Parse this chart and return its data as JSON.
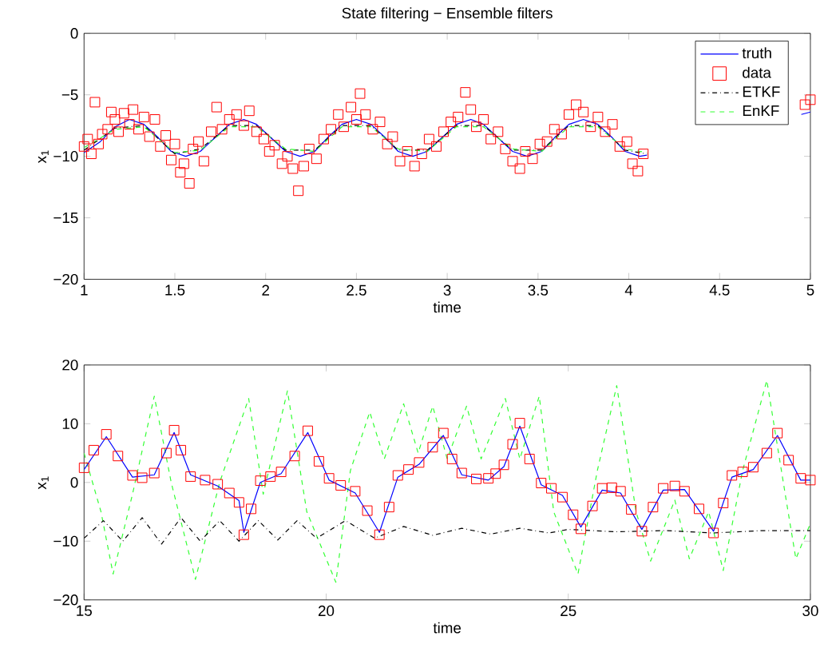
{
  "chart_data": [
    {
      "type": "line",
      "title": "State filtering − Ensemble filters",
      "xlabel": "time",
      "ylabel": "x$_{1}$",
      "xlim": [
        1,
        5
      ],
      "ylim": [
        -20,
        0
      ],
      "xticks": [
        1,
        1.5,
        2,
        2.5,
        3,
        3.5,
        4,
        4.5,
        5
      ],
      "yticks": [
        {
          "value": -20,
          "label": "−20"
        },
        {
          "value": -15,
          "label": "−15"
        },
        {
          "value": -10,
          "label": "−10"
        },
        {
          "value": -5,
          "label": "−5"
        },
        0
      ],
      "legend": "top right",
      "series": [
        {
          "name": "truth",
          "color": "#0000ff",
          "line_style": "solid",
          "x": [
            1.0,
            1.09,
            1.17,
            1.25,
            1.33,
            1.41,
            1.48,
            1.56,
            1.64,
            1.72,
            1.8,
            1.88,
            1.95,
            2.03,
            2.11,
            2.19,
            2.27,
            2.34,
            2.42,
            2.5,
            2.58,
            2.66,
            2.73,
            2.81,
            2.89,
            2.97,
            3.05,
            3.13,
            3.2,
            3.28,
            3.36,
            3.44,
            3.52,
            3.59,
            3.67,
            3.75,
            3.83,
            3.91,
            3.98,
            4.06,
            4.1,
            4.5,
            4.95,
            5.0
          ],
          "values": [
            -9.7,
            -8.8,
            -7.6,
            -7.0,
            -7.4,
            -8.5,
            -9.6,
            -10.0,
            -9.6,
            -8.5,
            -7.4,
            -7.0,
            -7.4,
            -8.5,
            -9.6,
            -10.0,
            -9.6,
            -8.5,
            -7.4,
            -7.0,
            -7.4,
            -8.5,
            -9.6,
            -10.0,
            -9.6,
            -8.5,
            -7.4,
            -7.0,
            -7.4,
            -8.5,
            -9.6,
            -10.0,
            -9.6,
            -8.5,
            -7.4,
            -7.0,
            -7.4,
            -8.5,
            -9.6,
            -10.0,
            -9.9,
            null,
            -6.6,
            -6.4
          ]
        },
        {
          "name": "data",
          "type": "scatter",
          "marker": "square",
          "color": "#ff0000",
          "x": [
            1.0,
            1.02,
            1.04,
            1.06,
            1.08,
            1.1,
            1.13,
            1.15,
            1.17,
            1.19,
            1.22,
            1.25,
            1.27,
            1.3,
            1.33,
            1.36,
            1.39,
            1.42,
            1.45,
            1.48,
            1.5,
            1.53,
            1.55,
            1.58,
            1.6,
            1.63,
            1.66,
            1.7,
            1.73,
            1.76,
            1.8,
            1.84,
            1.88,
            1.91,
            1.95,
            1.99,
            2.02,
            2.05,
            2.09,
            2.12,
            2.15,
            2.18,
            2.21,
            2.24,
            2.28,
            2.32,
            2.36,
            2.4,
            2.43,
            2.47,
            2.5,
            2.52,
            2.55,
            2.59,
            2.63,
            2.67,
            2.7,
            2.74,
            2.78,
            2.82,
            2.86,
            2.9,
            2.94,
            2.98,
            3.02,
            3.06,
            3.1,
            3.13,
            3.16,
            3.2,
            3.24,
            3.28,
            3.32,
            3.36,
            3.4,
            3.43,
            3.47,
            3.51,
            3.55,
            3.59,
            3.63,
            3.67,
            3.71,
            3.75,
            3.79,
            3.83,
            3.87,
            3.91,
            3.95,
            3.99,
            4.02,
            4.05,
            4.08,
            4.97,
            5.0
          ],
          "values": [
            -9.2,
            -8.6,
            -9.8,
            -5.6,
            -9.0,
            -8.2,
            -7.8,
            -6.4,
            -7.0,
            -8.0,
            -6.5,
            -7.4,
            -6.2,
            -7.8,
            -6.8,
            -8.4,
            -7.0,
            -9.2,
            -8.3,
            -10.3,
            -9.0,
            -11.3,
            -10.6,
            -12.2,
            -9.4,
            -8.8,
            -10.4,
            -8.0,
            -6.0,
            -7.8,
            -7.0,
            -6.6,
            -7.5,
            -6.3,
            -8.0,
            -8.6,
            -9.6,
            -9.1,
            -10.6,
            -10.0,
            -11.0,
            -12.8,
            -10.8,
            -9.4,
            -10.2,
            -8.6,
            -7.8,
            -6.6,
            -7.6,
            -6.0,
            -7.0,
            -4.9,
            -6.6,
            -7.8,
            -7.2,
            -9.0,
            -8.4,
            -10.4,
            -9.6,
            -10.8,
            -9.8,
            -8.6,
            -9.2,
            -8.0,
            -7.2,
            -6.8,
            -4.8,
            -6.2,
            -7.6,
            -7.0,
            -8.6,
            -8.0,
            -9.4,
            -10.4,
            -11.0,
            -9.6,
            -10.2,
            -9.0,
            -8.8,
            -7.8,
            -8.2,
            -6.6,
            -5.8,
            -6.4,
            -7.6,
            -6.8,
            -8.0,
            -7.4,
            -9.2,
            -8.8,
            -10.6,
            -11.2,
            -9.8,
            -5.8,
            -5.4
          ]
        },
        {
          "name": "ETKF",
          "color": "#000000",
          "line_style": "dashdot",
          "x": [
            1.0,
            1.17,
            1.33,
            1.5,
            1.64,
            1.8,
            1.95,
            2.11,
            2.27,
            2.42,
            2.58,
            2.73,
            2.89,
            3.05,
            3.2,
            3.36,
            3.52,
            3.67,
            3.83,
            3.98,
            4.1
          ],
          "values": [
            -9.5,
            -7.7,
            -7.5,
            -9.8,
            -9.4,
            -7.5,
            -7.5,
            -9.5,
            -9.5,
            -7.5,
            -7.5,
            -9.5,
            -9.5,
            -7.5,
            -7.5,
            -9.5,
            -9.5,
            -7.5,
            -7.5,
            -9.5,
            -9.8
          ]
        },
        {
          "name": "EnKF",
          "color": "#33ff33",
          "line_style": "dashed",
          "x": [
            1.0,
            1.17,
            1.33,
            1.5,
            1.64,
            1.8,
            1.95,
            2.11,
            2.27,
            2.42,
            2.58,
            2.73,
            2.89,
            3.05,
            3.2,
            3.36,
            3.52,
            3.67,
            3.83,
            3.98,
            4.1
          ],
          "values": [
            -9.3,
            -7.8,
            -7.6,
            -9.7,
            -9.5,
            -7.6,
            -7.6,
            -9.4,
            -9.6,
            -7.6,
            -7.6,
            -9.4,
            -9.6,
            -7.6,
            -7.6,
            -9.4,
            -9.6,
            -7.6,
            -7.6,
            -9.4,
            -9.7
          ]
        }
      ]
    },
    {
      "type": "line",
      "xlabel": "time",
      "ylabel": "x$_{1}$",
      "xlim": [
        15,
        30
      ],
      "ylim": [
        -20,
        20
      ],
      "xticks": [
        15,
        20,
        25,
        30
      ],
      "yticks": [
        {
          "value": -20,
          "label": "−20"
        },
        {
          "value": -10,
          "label": "−10"
        },
        0,
        10,
        20
      ],
      "series": [
        {
          "color": "#33ff33",
          "line_style": "dashed",
          "x": [
            15.0,
            15.35,
            15.6,
            16.0,
            16.45,
            16.8,
            17.3,
            17.8,
            18.4,
            18.7,
            19.2,
            19.6,
            20.2,
            20.5,
            20.9,
            21.2,
            21.6,
            21.9,
            22.2,
            22.5,
            22.9,
            23.2,
            23.7,
            24.0,
            24.4,
            24.7,
            25.2,
            25.6,
            26.0,
            26.4,
            26.7,
            27.2,
            27.5,
            27.9,
            28.2,
            28.6,
            29.1,
            29.5,
            29.7,
            30.0
          ],
          "values": [
            5,
            -5,
            -15.6,
            -2,
            14.7,
            0,
            -16.5,
            0,
            14.3,
            -2,
            15.6,
            -5,
            -17,
            2,
            12,
            4,
            13.4,
            5,
            13,
            4,
            13,
            4,
            14.3,
            4,
            14.7,
            -5,
            -15.6,
            2,
            16.5,
            -5,
            -13.4,
            -3,
            -13,
            -5,
            -15,
            2,
            17.4,
            -3,
            -13,
            -7
          ]
        },
        {
          "color": "#000000",
          "line_style": "dashdot",
          "x": [
            15,
            15.4,
            15.8,
            16.2,
            16.6,
            17,
            17.4,
            17.8,
            18.2,
            18.6,
            19,
            19.4,
            19.8,
            20.4,
            21,
            21.6,
            22.2,
            22.8,
            23.4,
            24,
            24.6,
            25,
            26,
            27,
            28,
            29,
            30
          ],
          "values": [
            -9.5,
            -6.5,
            -10,
            -6,
            -10.5,
            -6,
            -10,
            -6.5,
            -10,
            -6.5,
            -9.8,
            -6.5,
            -9.5,
            -6.5,
            -9.5,
            -7.5,
            -9,
            -7.8,
            -8.8,
            -7.8,
            -8.6,
            -8,
            -8.4,
            -8.2,
            -8.6,
            -8.2,
            -8.2
          ]
        },
        {
          "type": "scatter",
          "marker": "square",
          "color": "#ff0000",
          "x": [
            15.0,
            15.2,
            15.46,
            15.7,
            16.0,
            16.2,
            16.45,
            16.7,
            16.86,
            17.0,
            17.2,
            17.5,
            17.76,
            18.0,
            18.2,
            18.3,
            18.45,
            18.64,
            18.85,
            19.07,
            19.35,
            19.62,
            19.85,
            20.06,
            20.3,
            20.6,
            20.85,
            21.1,
            21.3,
            21.48,
            21.7,
            21.92,
            22.2,
            22.42,
            22.6,
            22.8,
            23.1,
            23.35,
            23.5,
            23.67,
            23.85,
            24.0,
            24.2,
            24.44,
            24.65,
            24.88,
            25.1,
            25.26,
            25.5,
            25.7,
            25.9,
            26.08,
            26.3,
            26.52,
            26.75,
            26.96,
            27.2,
            27.4,
            27.7,
            28.0,
            28.2,
            28.38,
            28.6,
            28.82,
            29.1,
            29.32,
            29.55,
            29.8,
            30.0
          ],
          "values": [
            2.5,
            5.5,
            8.2,
            4.5,
            1.2,
            0.8,
            1.6,
            5.0,
            8.9,
            5.5,
            1.0,
            0.4,
            -0.3,
            -1.8,
            -3.4,
            -8.9,
            -4.5,
            0.3,
            1.0,
            1.8,
            4.5,
            8.8,
            3.6,
            0.7,
            -0.5,
            -1.5,
            -4.8,
            -8.9,
            -4.2,
            1.2,
            2.2,
            3.4,
            6.0,
            8.4,
            4.0,
            1.6,
            0.6,
            0.7,
            1.5,
            3.0,
            6.5,
            10.1,
            4.0,
            -0.1,
            -1.0,
            -2.5,
            -5.5,
            -7.9,
            -4.0,
            -1.0,
            -0.9,
            -1.5,
            -4.6,
            -8.3,
            -4.2,
            -1.0,
            -0.6,
            -1.5,
            -4.5,
            -8.6,
            -3.5,
            1.2,
            1.8,
            2.6,
            5.0,
            8.4,
            3.8,
            0.7,
            0.4
          ]
        },
        {
          "color": "#0000ff",
          "line_style": "solid",
          "x": [
            15.0,
            15.46,
            16.0,
            16.45,
            16.86,
            17.2,
            17.76,
            18.2,
            18.3,
            18.64,
            19.07,
            19.62,
            20.06,
            20.6,
            21.1,
            21.48,
            21.92,
            22.42,
            22.8,
            23.35,
            23.67,
            24.0,
            24.44,
            24.88,
            25.26,
            25.7,
            26.08,
            26.52,
            26.96,
            27.4,
            28.0,
            28.38,
            28.82,
            29.32,
            29.8,
            30.0
          ],
          "values": [
            2.2,
            7.8,
            0.9,
            1.3,
            8.5,
            1.3,
            -0.6,
            -3.1,
            -8.5,
            0,
            1.5,
            8.5,
            0.4,
            -1.8,
            -8.5,
            0.9,
            3.1,
            8.0,
            1.3,
            0.4,
            2.7,
            9.6,
            -0.4,
            -2.2,
            -7.6,
            -1.3,
            -1.8,
            -8.0,
            -1.3,
            -1.2,
            -8.3,
            0.9,
            2.2,
            8.0,
            0.4,
            0.4
          ]
        }
      ]
    }
  ]
}
